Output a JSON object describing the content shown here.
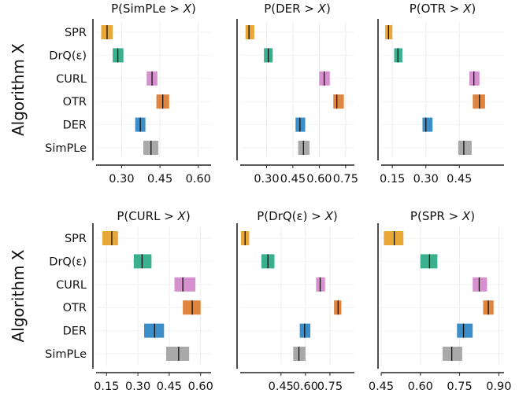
{
  "chart_data": {
    "type": "interval",
    "ylabel": "Algorithm X",
    "categories": [
      "SPR",
      "DrQ(ε)",
      "CURL",
      "OTR",
      "DER",
      "SimPLe"
    ],
    "colors": {
      "SPR": "#e8a838",
      "DrQ(ε)": "#3ab08e",
      "CURL": "#d690cd",
      "OTR": "#e0853f",
      "DER": "#3b8ec7",
      "SimPLe": "#a9a9a9"
    },
    "panels": [
      {
        "title_prefix": "P(SimPLe > ",
        "title_var": "X",
        "title_suffix": ")",
        "xlim": [
          0.2,
          0.65
        ],
        "ticks": [
          0.3,
          0.45,
          0.6
        ],
        "tick_labels": [
          "0.30",
          "0.45",
          "0.60"
        ],
        "intervals": [
          [
            0.22,
            0.265
          ],
          [
            0.265,
            0.307
          ],
          [
            0.398,
            0.44
          ],
          [
            0.436,
            0.486
          ],
          [
            0.353,
            0.393
          ],
          [
            0.385,
            0.444
          ]
        ],
        "medians": [
          0.243,
          0.285,
          0.419,
          0.461,
          0.373,
          0.415
        ]
      },
      {
        "title_prefix": "P(DER > ",
        "title_var": "X",
        "title_suffix": ")",
        "xlim": [
          0.15,
          0.8
        ],
        "ticks": [
          0.3,
          0.45,
          0.6,
          0.75
        ],
        "tick_labels": [
          "0.30",
          "0.45",
          "0.60",
          "0.75"
        ],
        "intervals": [
          [
            0.18,
            0.23
          ],
          [
            0.285,
            0.335
          ],
          [
            0.6,
            0.66
          ],
          [
            0.68,
            0.74
          ],
          [
            0.465,
            0.52
          ],
          [
            0.48,
            0.545
          ]
        ],
        "medians": [
          0.2,
          0.31,
          0.628,
          0.7,
          0.49,
          0.51
        ]
      },
      {
        "title_prefix": "P(OTR > ",
        "title_var": "X",
        "title_suffix": ")",
        "xlim": [
          0.1,
          0.65
        ],
        "ticks": [
          0.15,
          0.3,
          0.45
        ],
        "tick_labels": [
          "0.15",
          "0.30",
          "0.45"
        ],
        "intervals": [
          [
            0.118,
            0.15
          ],
          [
            0.158,
            0.195
          ],
          [
            0.495,
            0.54
          ],
          [
            0.51,
            0.565
          ],
          [
            0.285,
            0.33
          ],
          [
            0.445,
            0.505
          ]
        ],
        "medians": [
          0.133,
          0.175,
          0.515,
          0.54,
          0.3,
          0.47
        ]
      },
      {
        "title_prefix": "P(CURL > ",
        "title_var": "X",
        "title_suffix": ")",
        "xlim": [
          0.1,
          0.65
        ],
        "ticks": [
          0.15,
          0.3,
          0.45,
          0.6
        ],
        "tick_labels": [
          "0.15",
          "0.30",
          "0.45",
          "0.60"
        ],
        "intervals": [
          [
            0.13,
            0.205
          ],
          [
            0.28,
            0.365
          ],
          [
            0.475,
            0.575
          ],
          [
            0.515,
            0.6
          ],
          [
            0.33,
            0.425
          ],
          [
            0.435,
            0.545
          ]
        ],
        "medians": [
          0.175,
          0.32,
          0.515,
          0.56,
          0.38,
          0.495
        ]
      },
      {
        "title_prefix": "P(DrQ(ε) > ",
        "title_var": "X",
        "title_suffix": ")",
        "xlim": [
          0.2,
          0.9
        ],
        "ticks": [
          0.45,
          0.6,
          0.75
        ],
        "tick_labels": [
          "0.45",
          "0.60",
          "0.75"
        ],
        "intervals": [
          [
            0.205,
            0.255
          ],
          [
            0.33,
            0.41
          ],
          [
            0.665,
            0.72
          ],
          [
            0.775,
            0.82
          ],
          [
            0.565,
            0.63
          ],
          [
            0.525,
            0.6
          ]
        ],
        "medians": [
          0.23,
          0.37,
          0.69,
          0.8,
          0.595,
          0.56
        ]
      },
      {
        "title_prefix": "P(SPR > ",
        "title_var": "X",
        "title_suffix": ")",
        "xlim": [
          0.45,
          0.92
        ],
        "ticks": [
          0.45,
          0.6,
          0.75,
          0.9
        ],
        "tick_labels": [
          "0.45",
          "0.60",
          "0.75",
          "0.90"
        ],
        "intervals": [
          [
            0.46,
            0.535
          ],
          [
            0.6,
            0.665
          ],
          [
            0.8,
            0.855
          ],
          [
            0.84,
            0.88
          ],
          [
            0.74,
            0.8
          ],
          [
            0.685,
            0.76
          ]
        ],
        "medians": [
          0.5,
          0.635,
          0.825,
          0.86,
          0.765,
          0.72
        ]
      }
    ]
  }
}
